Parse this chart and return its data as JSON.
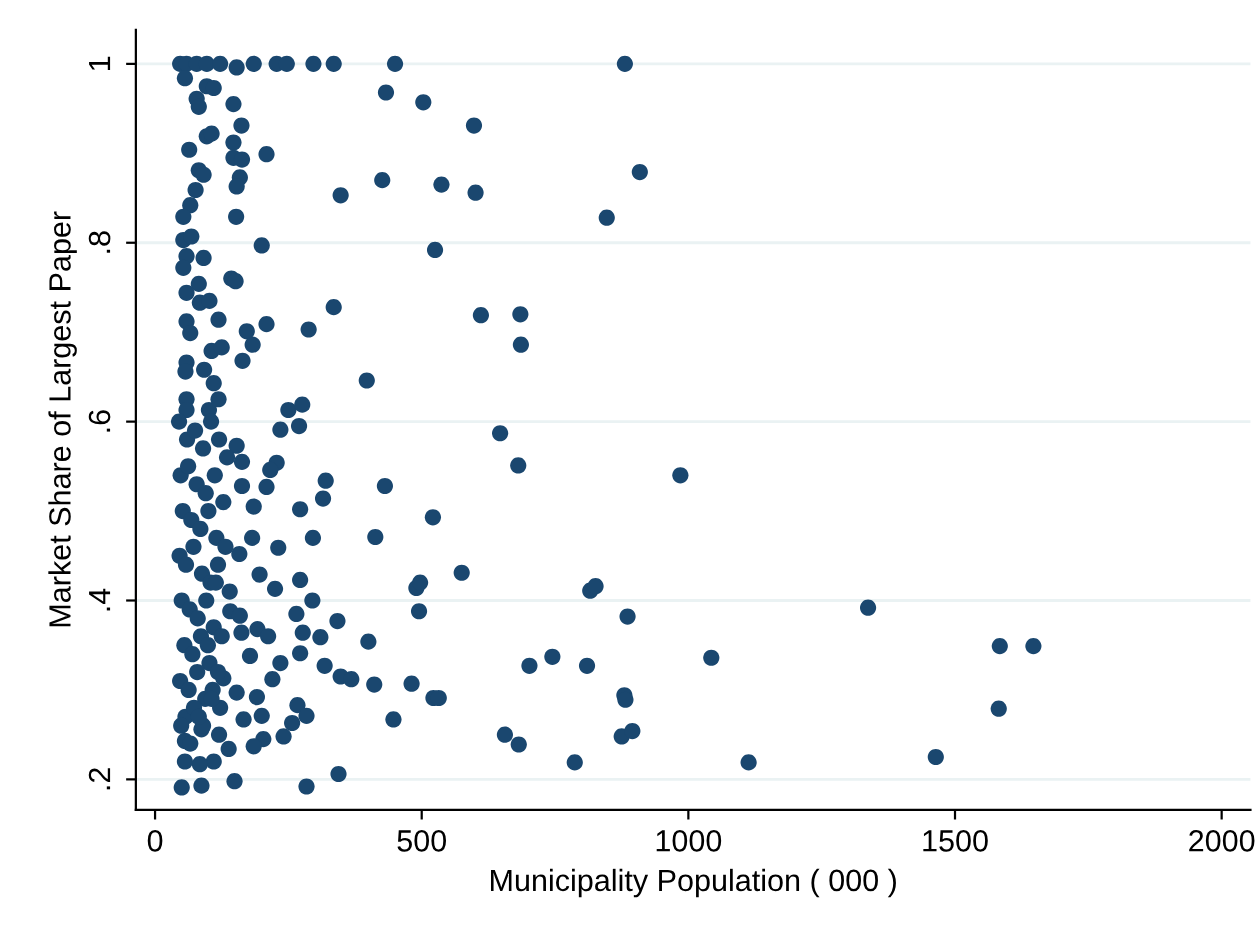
{
  "chart_data": {
    "type": "scatter",
    "xlabel": "Municipality Population ( 000 )",
    "ylabel": "Market Share of Largest Paper",
    "color": "#1a476f",
    "marker": "circle",
    "grid": "y",
    "xlim": [
      -36,
      2054
    ],
    "ylim": [
      0.166,
      1.038
    ],
    "xticks": [
      0,
      500,
      1000,
      1500,
      2000
    ],
    "yticks": [
      {
        "value": 0.2,
        "label": ".2"
      },
      {
        "value": 0.4,
        "label": ".4"
      },
      {
        "value": 0.6,
        "label": ".6"
      },
      {
        "value": 0.8,
        "label": ".8"
      },
      {
        "value": 1,
        "label": "1"
      }
    ],
    "x": [
      47,
      59,
      78,
      97,
      122,
      153,
      185,
      228,
      247,
      297,
      335,
      450,
      881,
      56,
      97,
      110,
      78,
      82,
      147,
      433,
      503,
      598,
      162,
      97,
      106,
      147,
      64,
      209,
      147,
      163,
      82,
      91,
      909,
      426,
      537,
      601,
      348,
      159,
      153,
      76,
      66,
      53,
      152,
      847,
      53,
      68,
      200,
      525,
      59,
      91,
      53,
      143,
      151,
      82,
      59,
      84,
      102,
      335,
      611,
      685,
      119,
      59,
      66,
      172,
      209,
      288,
      686,
      183,
      106,
      125,
      164,
      59,
      57,
      92,
      397,
      110,
      59,
      59,
      101,
      119,
      250,
      276,
      235,
      270,
      647,
      681,
      985,
      1337,
      1043,
      1584,
      1647,
      1582,
      1464,
      1113,
      153,
      163,
      228,
      216,
      320,
      315,
      431,
      209,
      163,
      185,
      272,
      521,
      413,
      296,
      182,
      231,
      158,
      575,
      490,
      497,
      816,
      826,
      272,
      196,
      225,
      295,
      495,
      886,
      265,
      342,
      141,
      159,
      277,
      310,
      400,
      192,
      212,
      162,
      272,
      235,
      178,
      318,
      348,
      368,
      411,
      481,
      702,
      745,
      810,
      880,
      882,
      522,
      532,
      220,
      128,
      191,
      153,
      267,
      284,
      257,
      200,
      166,
      447,
      241,
      656,
      682,
      787,
      875,
      895,
      203,
      185,
      138,
      87,
      56,
      110,
      84,
      56,
      344,
      149,
      284,
      87,
      50,
      45,
      60,
      75,
      90,
      105,
      120,
      135,
      48,
      62,
      78,
      95,
      112,
      128,
      52,
      68,
      85,
      100,
      115,
      132,
      46,
      58,
      72,
      88,
      104,
      118,
      140,
      50,
      65,
      80,
      96,
      110,
      125,
      55,
      70,
      86,
      102,
      118,
      47,
      63,
      79,
      94,
      108,
      122,
      57,
      73,
      90,
      106,
      120,
      49,
      66,
      82,
      99,
      114
    ],
    "values": [
      1,
      1,
      1,
      1,
      1,
      0.996,
      1,
      1,
      1,
      1,
      1,
      1,
      1,
      0.984,
      0.975,
      0.973,
      0.961,
      0.952,
      0.955,
      0.968,
      0.957,
      0.931,
      0.931,
      0.919,
      0.922,
      0.912,
      0.904,
      0.899,
      0.895,
      0.893,
      0.881,
      0.876,
      0.879,
      0.87,
      0.865,
      0.856,
      0.853,
      0.873,
      0.863,
      0.859,
      0.842,
      0.829,
      0.829,
      0.828,
      0.803,
      0.807,
      0.797,
      0.792,
      0.785,
      0.783,
      0.772,
      0.76,
      0.757,
      0.754,
      0.744,
      0.733,
      0.735,
      0.728,
      0.719,
      0.72,
      0.714,
      0.712,
      0.699,
      0.701,
      0.709,
      0.703,
      0.686,
      0.686,
      0.679,
      0.683,
      0.668,
      0.666,
      0.656,
      0.658,
      0.646,
      0.643,
      0.625,
      0.613,
      0.613,
      0.625,
      0.613,
      0.619,
      0.591,
      0.595,
      0.587,
      0.551,
      0.54,
      0.392,
      0.336,
      0.349,
      0.349,
      0.279,
      0.225,
      0.219,
      0.573,
      0.555,
      0.554,
      0.546,
      0.534,
      0.514,
      0.528,
      0.527,
      0.528,
      0.505,
      0.502,
      0.493,
      0.471,
      0.47,
      0.47,
      0.459,
      0.452,
      0.431,
      0.414,
      0.42,
      0.411,
      0.416,
      0.423,
      0.429,
      0.413,
      0.4,
      0.388,
      0.382,
      0.385,
      0.377,
      0.388,
      0.383,
      0.364,
      0.359,
      0.354,
      0.368,
      0.36,
      0.364,
      0.341,
      0.33,
      0.338,
      0.327,
      0.315,
      0.312,
      0.306,
      0.307,
      0.327,
      0.337,
      0.327,
      0.294,
      0.289,
      0.291,
      0.291,
      0.312,
      0.313,
      0.292,
      0.297,
      0.283,
      0.271,
      0.263,
      0.271,
      0.267,
      0.267,
      0.248,
      0.25,
      0.239,
      0.219,
      0.248,
      0.254,
      0.245,
      0.237,
      0.234,
      0.256,
      0.243,
      0.22,
      0.217,
      0.22,
      0.206,
      0.198,
      0.192,
      0.193,
      0.191,
      0.6,
      0.58,
      0.59,
      0.57,
      0.6,
      0.58,
      0.56,
      0.54,
      0.55,
      0.53,
      0.52,
      0.54,
      0.51,
      0.5,
      0.49,
      0.48,
      0.5,
      0.47,
      0.46,
      0.45,
      0.44,
      0.46,
      0.43,
      0.42,
      0.44,
      0.41,
      0.4,
      0.39,
      0.38,
      0.4,
      0.37,
      0.36,
      0.35,
      0.34,
      0.36,
      0.33,
      0.32,
      0.31,
      0.3,
      0.32,
      0.29,
      0.3,
      0.28,
      0.27,
      0.28,
      0.26,
      0.29,
      0.25,
      0.26,
      0.24,
      0.27,
      0.35,
      0.42
    ]
  }
}
